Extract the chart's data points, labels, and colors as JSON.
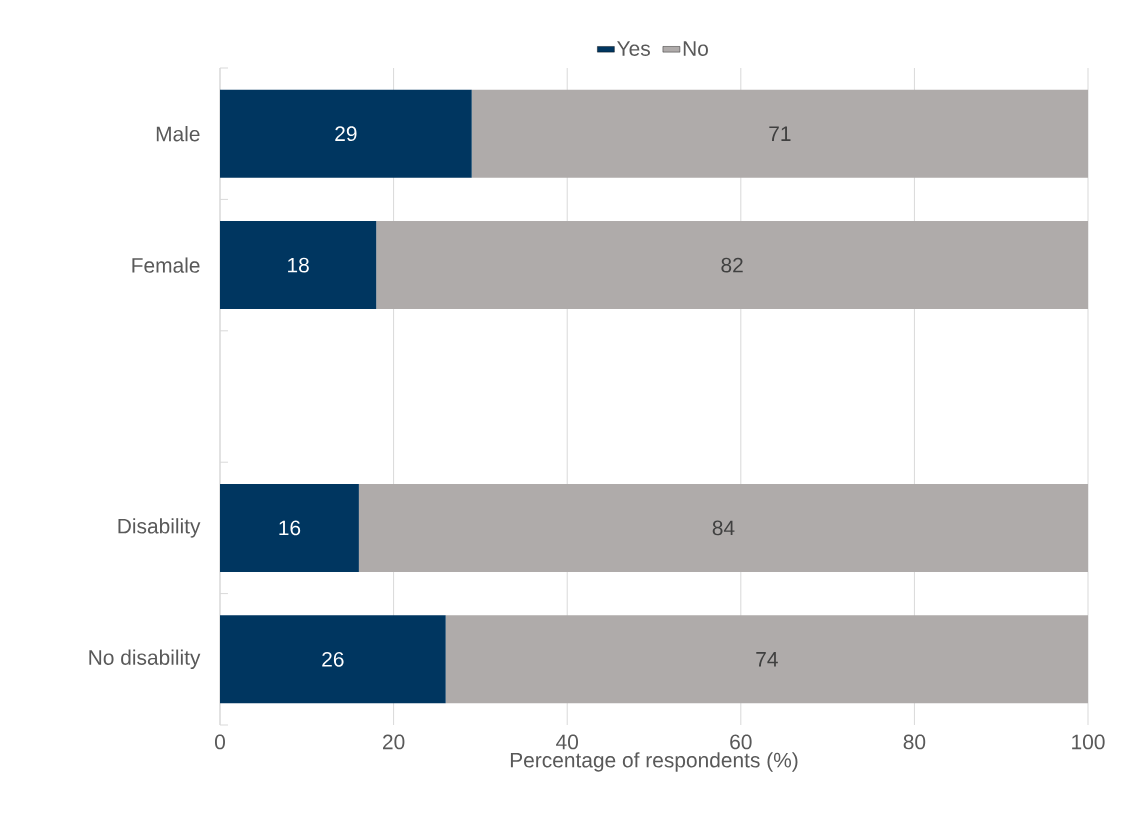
{
  "chart_data": {
    "type": "bar",
    "orientation": "horizontal",
    "stacked": true,
    "categories": [
      "Male",
      "Female",
      null,
      "Disability",
      "No disability"
    ],
    "series": [
      {
        "name": "Yes",
        "color": "#003660",
        "values": [
          29,
          18,
          null,
          16,
          26
        ]
      },
      {
        "name": "No",
        "color": "#afabaa",
        "values": [
          71,
          82,
          null,
          84,
          74
        ]
      }
    ],
    "xlabel": "Percentage of respondents (%)",
    "xlim": [
      0,
      100
    ],
    "xticks": [
      0,
      20,
      40,
      60,
      80,
      100
    ],
    "grid": "x",
    "legend": "top",
    "data_labels": true
  }
}
